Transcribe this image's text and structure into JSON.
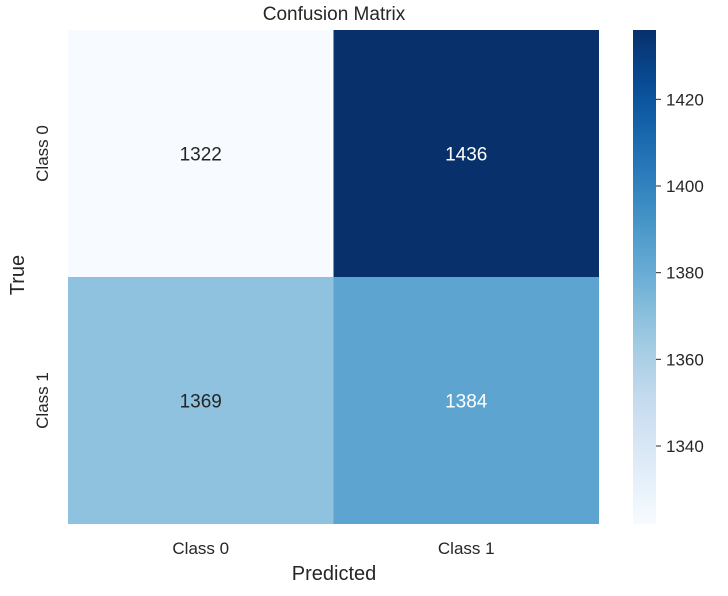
{
  "chart_data": {
    "type": "heatmap",
    "title": "Confusion Matrix",
    "xlabel": "Predicted",
    "ylabel": "True",
    "x_categories": [
      "Class 0",
      "Class 1"
    ],
    "y_categories": [
      "Class 0",
      "Class 1"
    ],
    "values": [
      [
        1322,
        1436
      ],
      [
        1369,
        1384
      ]
    ],
    "colormap": "Blues",
    "color_range": [
      1322,
      1436
    ],
    "colorbar": {
      "ticks": [
        1340,
        1360,
        1380,
        1400,
        1420
      ],
      "tick_labels": [
        "1340",
        "1360",
        "1380",
        "1400",
        "1420"
      ]
    },
    "colors": {
      "low": "#f7fbff",
      "high": "#08306b",
      "dark_text": "#262626",
      "light_text": "#ffffff"
    }
  }
}
